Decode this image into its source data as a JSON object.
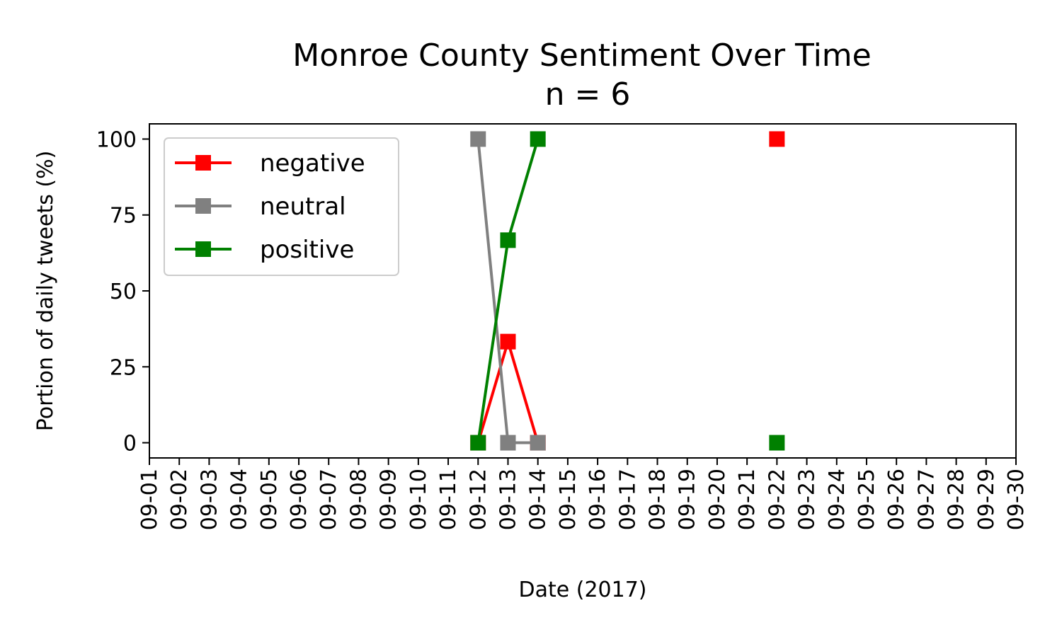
{
  "chart_data": {
    "type": "line",
    "title": "Monroe County Sentiment Over Time",
    "subtitle": "n = 6",
    "xlabel": "Date (2017)",
    "ylabel": "Portion of daily tweets (%)",
    "x_ticks": [
      "09-01",
      "09-02",
      "09-03",
      "09-04",
      "09-05",
      "09-06",
      "09-07",
      "09-08",
      "09-09",
      "09-10",
      "09-11",
      "09-12",
      "09-13",
      "09-14",
      "09-15",
      "09-16",
      "09-17",
      "09-18",
      "09-19",
      "09-20",
      "09-21",
      "09-22",
      "09-23",
      "09-24",
      "09-25",
      "09-26",
      "09-27",
      "09-28",
      "09-29",
      "09-30"
    ],
    "x_range": [
      "2017-09-01",
      "2017-09-30"
    ],
    "ylim": [
      -5,
      105
    ],
    "y_ticks": [
      0,
      25,
      50,
      75,
      100
    ],
    "grid": false,
    "legend_position": "top-left",
    "marker": "square",
    "series": [
      {
        "name": "negative",
        "color": "#ff0000",
        "points": [
          {
            "x": "2017-09-12",
            "y": 0
          },
          {
            "x": "2017-09-13",
            "y": 33.3
          },
          {
            "x": "2017-09-14",
            "y": 0
          },
          {
            "x": "2017-09-22",
            "y": 100,
            "break_before": true
          }
        ]
      },
      {
        "name": "neutral",
        "color": "#808080",
        "points": [
          {
            "x": "2017-09-12",
            "y": 100
          },
          {
            "x": "2017-09-13",
            "y": 0
          },
          {
            "x": "2017-09-14",
            "y": 0
          }
        ]
      },
      {
        "name": "positive",
        "color": "#008000",
        "points": [
          {
            "x": "2017-09-12",
            "y": 0
          },
          {
            "x": "2017-09-13",
            "y": 66.7
          },
          {
            "x": "2017-09-14",
            "y": 100
          },
          {
            "x": "2017-09-22",
            "y": 0,
            "break_before": true
          }
        ]
      }
    ]
  }
}
